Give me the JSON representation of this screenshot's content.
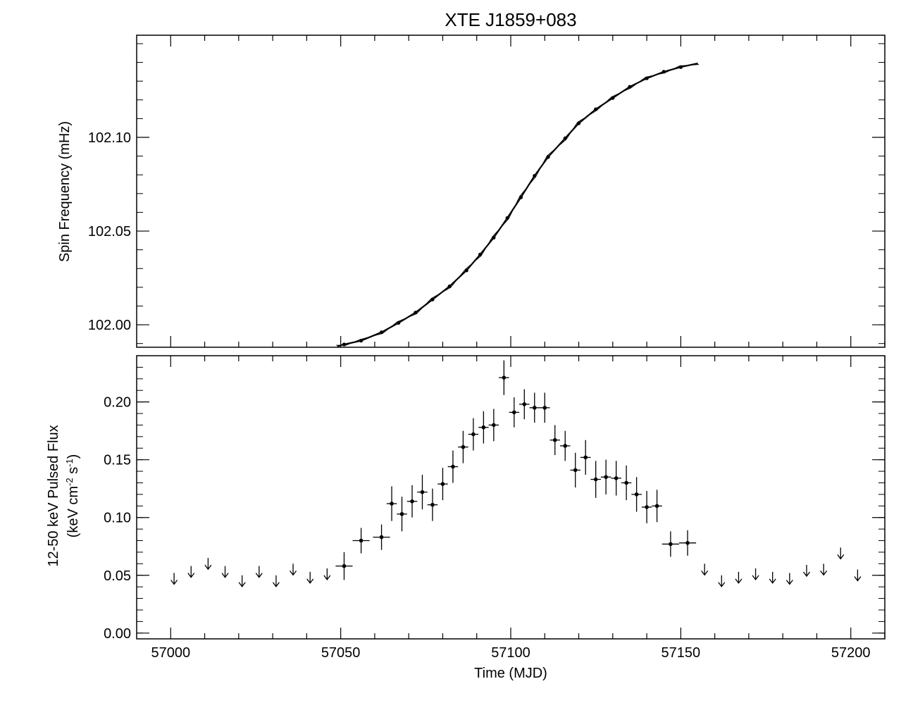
{
  "chart_data": [
    {
      "type": "line",
      "title": "XTE J1859+083",
      "xlabel": "",
      "ylabel": "Spin Frequency (mHz)",
      "xlim": [
        56990,
        57210
      ],
      "ylim": [
        101.988,
        102.1545
      ],
      "xticks": [
        57000,
        57050,
        57100,
        57150,
        57200
      ],
      "yticks": [
        102.0,
        102.05,
        102.1
      ],
      "ytick_labels": [
        "102.00",
        "102.05",
        "102.10"
      ],
      "series": [
        {
          "x": [
            57049,
            57051,
            57056,
            57062,
            57067,
            57072,
            57077,
            57082,
            57087,
            57091,
            57095,
            57099,
            57103,
            57107,
            57111,
            57116,
            57120,
            57125,
            57130,
            57135,
            57140,
            57145,
            57150,
            57155
          ],
          "y": [
            101.9885,
            101.9895,
            101.9915,
            101.996,
            102.001,
            102.0065,
            102.0135,
            102.0205,
            102.029,
            102.0375,
            102.0465,
            102.057,
            102.068,
            102.0795,
            102.0895,
            102.0995,
            102.1075,
            102.115,
            102.121,
            102.127,
            102.1315,
            102.135,
            102.1375,
            102.1395
          ]
        }
      ]
    },
    {
      "type": "scatter",
      "title": "",
      "xlabel": "Time (MJD)",
      "ylabel_line1": "12-50 keV Pulsed Flux",
      "ylabel_line2": "(keV cm-2 s-1)",
      "xlim": [
        56990,
        57210
      ],
      "ylim": [
        -0.005,
        0.24
      ],
      "xticks": [
        57000,
        57050,
        57100,
        57150,
        57200
      ],
      "xtick_labels": [
        "57000",
        "57050",
        "57100",
        "57150",
        "57200"
      ],
      "yticks": [
        0.0,
        0.05,
        0.1,
        0.15,
        0.2
      ],
      "ytick_labels": [
        "0.00",
        "0.05",
        "0.10",
        "0.15",
        "0.20"
      ],
      "points": [
        {
          "x": 57051,
          "y": 0.058,
          "xerr": 2.5,
          "yerr": 0.012
        },
        {
          "x": 57056,
          "y": 0.08,
          "xerr": 2.5,
          "yerr": 0.011
        },
        {
          "x": 57062,
          "y": 0.083,
          "xerr": 2.5,
          "yerr": 0.011
        },
        {
          "x": 57065,
          "y": 0.112,
          "xerr": 1.5,
          "yerr": 0.015
        },
        {
          "x": 57068,
          "y": 0.103,
          "xerr": 1.5,
          "yerr": 0.015
        },
        {
          "x": 57071,
          "y": 0.114,
          "xerr": 1.5,
          "yerr": 0.014
        },
        {
          "x": 57074,
          "y": 0.122,
          "xerr": 1.5,
          "yerr": 0.015
        },
        {
          "x": 57077,
          "y": 0.111,
          "xerr": 1.5,
          "yerr": 0.014
        },
        {
          "x": 57080,
          "y": 0.129,
          "xerr": 1.5,
          "yerr": 0.014
        },
        {
          "x": 57083,
          "y": 0.144,
          "xerr": 1.5,
          "yerr": 0.014
        },
        {
          "x": 57086,
          "y": 0.161,
          "xerr": 1.5,
          "yerr": 0.014
        },
        {
          "x": 57089,
          "y": 0.172,
          "xerr": 1.5,
          "yerr": 0.014
        },
        {
          "x": 57092,
          "y": 0.178,
          "xerr": 1.5,
          "yerr": 0.014
        },
        {
          "x": 57095,
          "y": 0.18,
          "xerr": 1.5,
          "yerr": 0.014
        },
        {
          "x": 57098,
          "y": 0.221,
          "xerr": 1.5,
          "yerr": 0.015
        },
        {
          "x": 57101,
          "y": 0.191,
          "xerr": 1.5,
          "yerr": 0.013
        },
        {
          "x": 57104,
          "y": 0.198,
          "xerr": 1.5,
          "yerr": 0.013
        },
        {
          "x": 57107,
          "y": 0.195,
          "xerr": 1.5,
          "yerr": 0.013
        },
        {
          "x": 57110,
          "y": 0.195,
          "xerr": 1.5,
          "yerr": 0.013
        },
        {
          "x": 57113,
          "y": 0.167,
          "xerr": 1.5,
          "yerr": 0.013
        },
        {
          "x": 57116,
          "y": 0.162,
          "xerr": 1.5,
          "yerr": 0.013
        },
        {
          "x": 57119,
          "y": 0.141,
          "xerr": 1.5,
          "yerr": 0.015
        },
        {
          "x": 57122,
          "y": 0.152,
          "xerr": 1.5,
          "yerr": 0.015
        },
        {
          "x": 57125,
          "y": 0.133,
          "xerr": 1.5,
          "yerr": 0.016
        },
        {
          "x": 57128,
          "y": 0.135,
          "xerr": 1.5,
          "yerr": 0.015
        },
        {
          "x": 57131,
          "y": 0.134,
          "xerr": 1.5,
          "yerr": 0.015
        },
        {
          "x": 57134,
          "y": 0.13,
          "xerr": 1.5,
          "yerr": 0.015
        },
        {
          "x": 57137,
          "y": 0.12,
          "xerr": 1.5,
          "yerr": 0.015
        },
        {
          "x": 57140,
          "y": 0.109,
          "xerr": 1.5,
          "yerr": 0.014
        },
        {
          "x": 57143,
          "y": 0.11,
          "xerr": 1.5,
          "yerr": 0.014
        },
        {
          "x": 57147,
          "y": 0.077,
          "xerr": 2.5,
          "yerr": 0.011
        },
        {
          "x": 57152,
          "y": 0.078,
          "xerr": 2.5,
          "yerr": 0.011
        }
      ],
      "upper_limits": [
        {
          "x": 57001,
          "y": 0.052
        },
        {
          "x": 57006,
          "y": 0.058
        },
        {
          "x": 57011,
          "y": 0.065
        },
        {
          "x": 57016,
          "y": 0.058
        },
        {
          "x": 57021,
          "y": 0.05
        },
        {
          "x": 57026,
          "y": 0.058
        },
        {
          "x": 57031,
          "y": 0.05
        },
        {
          "x": 57036,
          "y": 0.06
        },
        {
          "x": 57041,
          "y": 0.053
        },
        {
          "x": 57046,
          "y": 0.056
        },
        {
          "x": 57157,
          "y": 0.06
        },
        {
          "x": 57162,
          "y": 0.05
        },
        {
          "x": 57167,
          "y": 0.053
        },
        {
          "x": 57172,
          "y": 0.056
        },
        {
          "x": 57177,
          "y": 0.053
        },
        {
          "x": 57182,
          "y": 0.052
        },
        {
          "x": 57187,
          "y": 0.059
        },
        {
          "x": 57192,
          "y": 0.06
        },
        {
          "x": 57197,
          "y": 0.074
        },
        {
          "x": 57202,
          "y": 0.055
        }
      ]
    }
  ]
}
